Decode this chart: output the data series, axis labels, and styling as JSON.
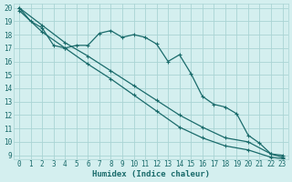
{
  "xlabel": "Humidex (Indice chaleur)",
  "bg_color": "#d4efef",
  "grid_color": "#aad4d4",
  "line_color": "#1a6b6b",
  "xlim": [
    -0.5,
    23.5
  ],
  "ylim": [
    8.7,
    20.3
  ],
  "xticks": [
    0,
    1,
    2,
    3,
    4,
    5,
    6,
    7,
    8,
    9,
    10,
    11,
    12,
    13,
    14,
    15,
    16,
    17,
    18,
    19,
    20,
    21,
    22,
    23
  ],
  "yticks": [
    9,
    10,
    11,
    12,
    13,
    14,
    15,
    16,
    17,
    18,
    19,
    20
  ],
  "curve_x": [
    0,
    1,
    2,
    3,
    4,
    5,
    6,
    7,
    8,
    9,
    10,
    11,
    12,
    13,
    14,
    15,
    16,
    17,
    18,
    19,
    20,
    21,
    22,
    23
  ],
  "curve_y": [
    20,
    19,
    18.5,
    17.2,
    17.0,
    17.2,
    17.2,
    18.1,
    18.3,
    17.8,
    18.0,
    17.8,
    17.3,
    16.0,
    16.5,
    15.1,
    13.4,
    12.8,
    12.6,
    12.1,
    10.5,
    9.9,
    9.1,
    9.0
  ],
  "line2_x": [
    0,
    2,
    4,
    6,
    8,
    10,
    12,
    14,
    16,
    18,
    20,
    22,
    23
  ],
  "line2_y": [
    20,
    18.7,
    17.4,
    16.4,
    15.3,
    14.2,
    13.1,
    12.0,
    11.1,
    10.3,
    10.0,
    9.1,
    8.85
  ],
  "line3_x": [
    0,
    2,
    4,
    6,
    8,
    10,
    12,
    14,
    16,
    18,
    20,
    22,
    23
  ],
  "line3_y": [
    19.8,
    18.2,
    17.0,
    15.8,
    14.7,
    13.5,
    12.3,
    11.1,
    10.3,
    9.7,
    9.4,
    8.85,
    8.75
  ]
}
